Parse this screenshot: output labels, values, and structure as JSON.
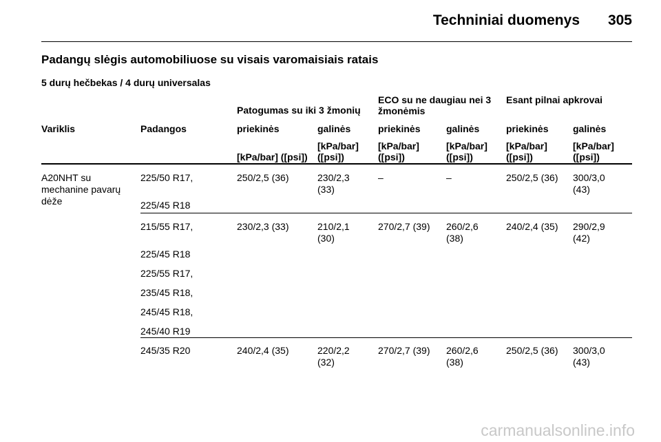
{
  "header": {
    "section": "Techniniai duomenys",
    "page": "305"
  },
  "title": "Padangų slėgis automobiliuose su visais varomaisiais ratais",
  "subtitle": "5 durų hečbekas / 4 durų universalas",
  "table": {
    "groups": [
      "Patogumas su iki 3 žmonių",
      "ECO su ne daugiau nei 3 žmonėmis",
      "Esant pilnai apkrovai"
    ],
    "columns": [
      "Variklis",
      "Padangos",
      "priekinės",
      "galinės",
      "priekinės",
      "galinės",
      "priekinės",
      "galinės"
    ],
    "units": [
      "[kPa/bar] ([psi])",
      "[kPa/bar] ([psi])",
      "[kPa/bar] ([psi])",
      "[kPa/bar] ([psi])",
      "[kPa/bar] ([psi])",
      "[kPa/bar] ([psi])"
    ],
    "engine": "A20NHT su mechanine pavarų dėže",
    "rows": [
      {
        "tires": [
          "225/50 R17,",
          "225/45 R18"
        ],
        "values": [
          "250/2,5 (36)",
          "230/2,3 (33)",
          "–",
          "–",
          "250/2,5 (36)",
          "300/3,0 (43)"
        ]
      },
      {
        "tires": [
          "215/55 R17,",
          "225/45 R18",
          "225/55 R17,",
          "235/45 R18,",
          "245/45 R18,",
          "245/40 R19"
        ],
        "values": [
          "230/2,3 (33)",
          "210/2,1 (30)",
          "270/2,7 (39)",
          "260/2,6 (38)",
          "240/2,4 (35)",
          "290/2,9 (42)"
        ]
      },
      {
        "tires": [
          "245/35 R20"
        ],
        "values": [
          "240/2,4 (35)",
          "220/2,2 (32)",
          "270/2,7 (39)",
          "260/2,6 (38)",
          "250/2,5 (36)",
          "300/3,0 (43)"
        ]
      }
    ]
  },
  "watermark": "carmanualsonline.info"
}
